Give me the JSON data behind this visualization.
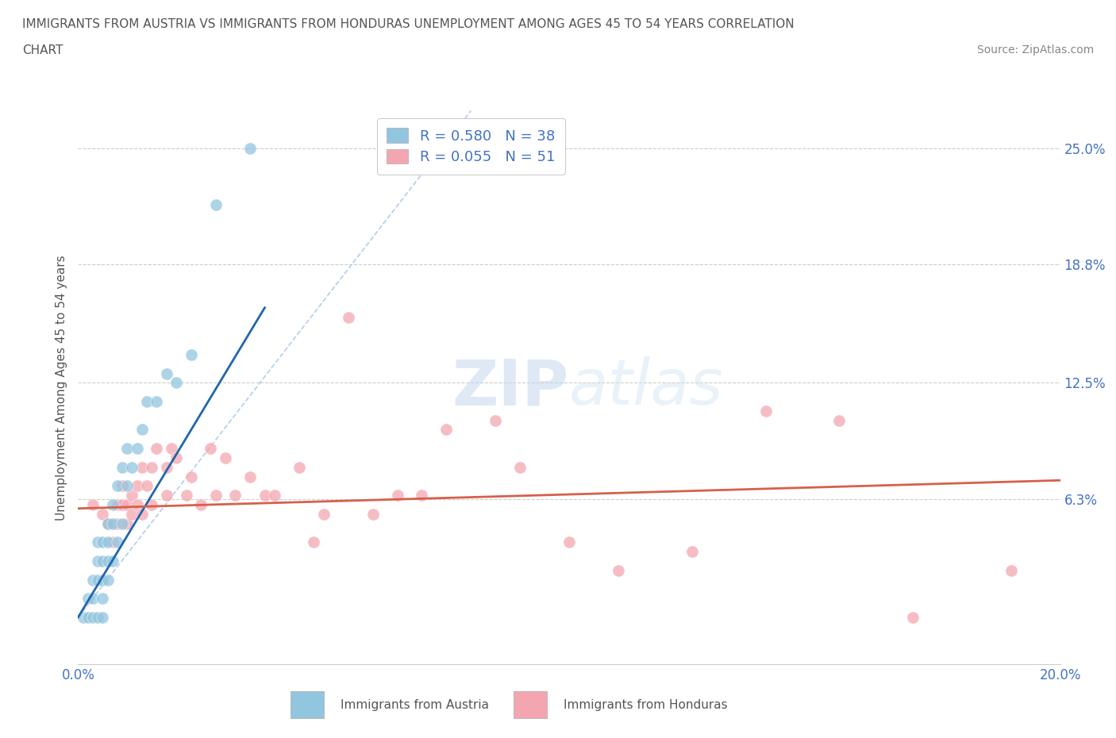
{
  "title_line1": "IMMIGRANTS FROM AUSTRIA VS IMMIGRANTS FROM HONDURAS UNEMPLOYMENT AMONG AGES 45 TO 54 YEARS CORRELATION",
  "title_line2": "CHART",
  "source": "Source: ZipAtlas.com",
  "ylabel": "Unemployment Among Ages 45 to 54 years",
  "xlim": [
    0.0,
    0.2
  ],
  "ylim": [
    -0.025,
    0.27
  ],
  "austria_color": "#92c5de",
  "honduras_color": "#f4a6b0",
  "austria_R": 0.58,
  "austria_N": 38,
  "honduras_R": 0.055,
  "honduras_N": 51,
  "austria_trendline_color": "#2166ac",
  "honduras_trendline_color": "#d6604d",
  "dashed_line_color": "#aac8e8",
  "watermark_zip": "ZIP",
  "watermark_atlas": "atlas",
  "austria_x": [
    0.001,
    0.002,
    0.002,
    0.003,
    0.003,
    0.003,
    0.004,
    0.004,
    0.004,
    0.004,
    0.005,
    0.005,
    0.005,
    0.005,
    0.005,
    0.006,
    0.006,
    0.006,
    0.006,
    0.007,
    0.007,
    0.007,
    0.008,
    0.008,
    0.009,
    0.009,
    0.01,
    0.01,
    0.011,
    0.012,
    0.013,
    0.014,
    0.016,
    0.018,
    0.02,
    0.023,
    0.028,
    0.035
  ],
  "austria_y": [
    0.0,
    0.0,
    0.01,
    0.0,
    0.01,
    0.02,
    0.0,
    0.02,
    0.03,
    0.04,
    0.0,
    0.01,
    0.02,
    0.03,
    0.04,
    0.02,
    0.03,
    0.04,
    0.05,
    0.03,
    0.05,
    0.06,
    0.04,
    0.07,
    0.05,
    0.08,
    0.07,
    0.09,
    0.08,
    0.09,
    0.1,
    0.115,
    0.115,
    0.13,
    0.125,
    0.14,
    0.22,
    0.25
  ],
  "honduras_x": [
    0.003,
    0.005,
    0.006,
    0.007,
    0.008,
    0.008,
    0.009,
    0.009,
    0.01,
    0.01,
    0.011,
    0.011,
    0.012,
    0.012,
    0.013,
    0.013,
    0.014,
    0.015,
    0.015,
    0.016,
    0.018,
    0.018,
    0.019,
    0.02,
    0.022,
    0.023,
    0.025,
    0.027,
    0.028,
    0.03,
    0.032,
    0.035,
    0.038,
    0.04,
    0.045,
    0.048,
    0.05,
    0.055,
    0.06,
    0.065,
    0.07,
    0.075,
    0.085,
    0.09,
    0.1,
    0.11,
    0.125,
    0.14,
    0.155,
    0.17,
    0.19
  ],
  "honduras_y": [
    0.06,
    0.055,
    0.05,
    0.04,
    0.06,
    0.05,
    0.06,
    0.07,
    0.05,
    0.06,
    0.055,
    0.065,
    0.06,
    0.07,
    0.055,
    0.08,
    0.07,
    0.06,
    0.08,
    0.09,
    0.065,
    0.08,
    0.09,
    0.085,
    0.065,
    0.075,
    0.06,
    0.09,
    0.065,
    0.085,
    0.065,
    0.075,
    0.065,
    0.065,
    0.08,
    0.04,
    0.055,
    0.16,
    0.055,
    0.065,
    0.065,
    0.1,
    0.105,
    0.08,
    0.04,
    0.025,
    0.035,
    0.11,
    0.105,
    0.0,
    0.025
  ],
  "trendline_austria_x0": 0.0,
  "trendline_austria_x1": 0.038,
  "trendline_austria_y0": 0.0,
  "trendline_austria_y1": 0.165,
  "trendline_honduras_x0": 0.0,
  "trendline_honduras_x1": 0.2,
  "trendline_honduras_y0": 0.058,
  "trendline_honduras_y1": 0.073
}
